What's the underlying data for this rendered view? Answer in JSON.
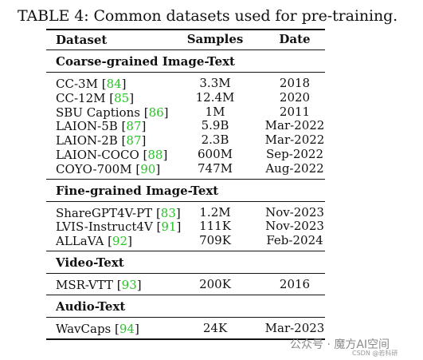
{
  "caption": "TABLE 4: Common datasets used for pre-training.",
  "header": {
    "dataset": "Dataset",
    "samples": "Samples",
    "date": "Date"
  },
  "sections": [
    {
      "title": "Coarse-grained Image-Text",
      "rows": [
        {
          "name": "CC-3M",
          "cite": "84",
          "samples": "3.3M",
          "date": "2018"
        },
        {
          "name": "CC-12M",
          "cite": "85",
          "samples": "12.4M",
          "date": "2020"
        },
        {
          "name": "SBU Captions",
          "cite": "86",
          "samples": "1M",
          "date": "2011"
        },
        {
          "name": "LAION-5B",
          "cite": "87",
          "samples": "5.9B",
          "date": "Mar-2022"
        },
        {
          "name": "LAION-2B",
          "cite": "87",
          "samples": "2.3B",
          "date": "Mar-2022"
        },
        {
          "name": "LAION-COCO",
          "cite": "88",
          "samples": "600M",
          "date": "Sep-2022"
        },
        {
          "name": "COYO-700M",
          "cite": "90",
          "samples": "747M",
          "date": "Aug-2022"
        }
      ]
    },
    {
      "title": "Fine-grained Image-Text",
      "rows": [
        {
          "name": "ShareGPT4V-PT",
          "cite": "83",
          "samples": "1.2M",
          "date": "Nov-2023"
        },
        {
          "name": "LVIS-Instruct4V",
          "cite": "91",
          "samples": "111K",
          "date": "Nov-2023"
        },
        {
          "name": "ALLaVA",
          "cite": "92",
          "samples": "709K",
          "date": "Feb-2024"
        }
      ]
    },
    {
      "title": "Video-Text",
      "rows": [
        {
          "name": "MSR-VTT",
          "cite": "93",
          "samples": "200K",
          "date": "2016"
        }
      ]
    },
    {
      "title": "Audio-Text",
      "rows": [
        {
          "name": "WavCaps",
          "cite": "94",
          "samples": "24K",
          "date": "Mar-2023"
        }
      ]
    }
  ],
  "watermark": "公众号 · 魔方AI空间",
  "watermark_small": "CSDN @若科研"
}
